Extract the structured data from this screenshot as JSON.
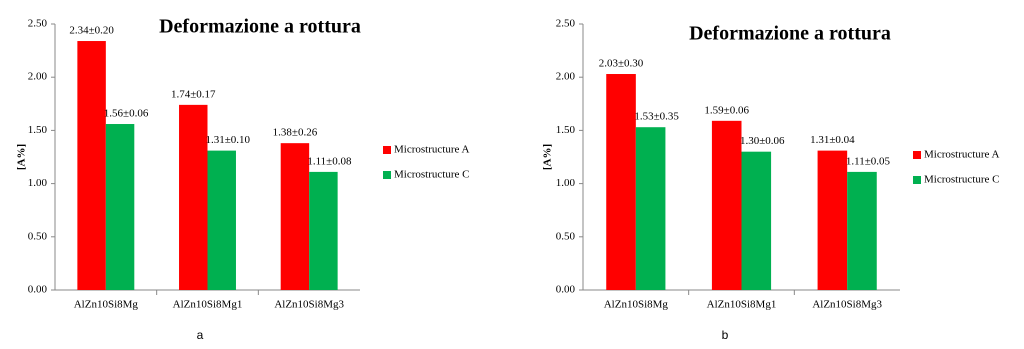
{
  "chart_data": [
    {
      "type": "bar",
      "title": "Deformazione a rottura",
      "y_label": "[A%]",
      "caption": "a",
      "categories": [
        "AlZn10Si8Mg",
        "AlZn10Si8Mg1",
        "AlZn10Si8Mg3"
      ],
      "series": [
        {
          "name": "Microstructure A",
          "color": "#ff0000",
          "values": [
            2.34,
            1.74,
            1.38
          ],
          "value_labels": [
            "2.34±0.20",
            "1.74±0.17",
            "1.38±0.26"
          ]
        },
        {
          "name": "Microstructure C",
          "color": "#00b050",
          "values": [
            1.56,
            1.31,
            1.11
          ],
          "value_labels": [
            "1.56±0.06",
            "1.31±0.10",
            "1.11±0.08"
          ]
        }
      ],
      "ylim": [
        0,
        2.5
      ],
      "yticks": [
        {
          "value": 0,
          "label": "0.00"
        },
        {
          "value": 0.5,
          "label": "0.50"
        },
        {
          "value": 1,
          "label": "1.00"
        },
        {
          "value": 1.5,
          "label": "1.50"
        },
        {
          "value": 2,
          "label": "2.00"
        },
        {
          "value": 2.5,
          "label": "2.50"
        }
      ],
      "legend": "right",
      "grid": false
    },
    {
      "type": "bar",
      "title": "Deformazione a rottura",
      "y_label": "[A%]",
      "caption": "b",
      "categories": [
        "AlZn10Si8Mg",
        "AlZn10Si8Mg1",
        "AlZn10Si8Mg3"
      ],
      "series": [
        {
          "name": "Microstructure A",
          "color": "#ff0000",
          "values": [
            2.03,
            1.59,
            1.31
          ],
          "value_labels": [
            "2.03±0.30",
            "1.59±0.06",
            "1.31±0.04"
          ]
        },
        {
          "name": "Microstructure C",
          "color": "#00b050",
          "values": [
            1.53,
            1.3,
            1.11
          ],
          "value_labels": [
            "1.53±0.35",
            "1.30±0.06",
            "1.11±0.05"
          ]
        }
      ],
      "ylim": [
        0,
        2.5
      ],
      "yticks": [
        {
          "value": 0,
          "label": "0.00"
        },
        {
          "value": 0.5,
          "label": "0.50"
        },
        {
          "value": 1,
          "label": "1.00"
        },
        {
          "value": 1.5,
          "label": "1.50"
        },
        {
          "value": 2,
          "label": "2.00"
        },
        {
          "value": 2.5,
          "label": "2.50"
        }
      ],
      "legend": "right",
      "grid": false
    }
  ]
}
